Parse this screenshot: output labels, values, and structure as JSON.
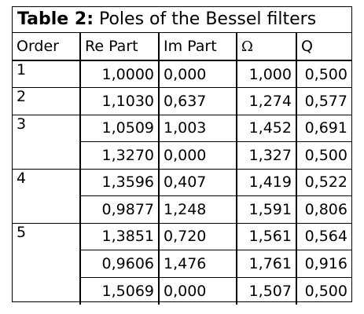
{
  "title": {
    "label": "Table 2:",
    "text": " Poles of the Bessel filters"
  },
  "columns": [
    "Order",
    "Re Part",
    "Im Part",
    "Ω",
    "Q"
  ],
  "rows": [
    {
      "order": "1",
      "re": "1,0000",
      "im": "0,000",
      "omega": "1,000",
      "q": "0,500"
    },
    {
      "order": "2",
      "re": "1,1030",
      "im": "0,637",
      "omega": "1,274",
      "q": "0,577"
    },
    {
      "order": "3",
      "re": "1,0509",
      "im": "1,003",
      "omega": "1,452",
      "q": "0,691"
    },
    {
      "order": "",
      "re": "1,3270",
      "im": "0,000",
      "omega": "1,327",
      "q": "0,500"
    },
    {
      "order": "4",
      "re": "1,3596",
      "im": "0,407",
      "omega": "1,419",
      "q": "0,522"
    },
    {
      "order": "",
      "re": "0,9877",
      "im": "1,248",
      "omega": "1,591",
      "q": "0,806"
    },
    {
      "order": "5",
      "re": "1,3851",
      "im": "0,720",
      "omega": "1,561",
      "q": "0,564"
    },
    {
      "order": "",
      "re": "0,9606",
      "im": "1,476",
      "omega": "1,761",
      "q": "0,916"
    },
    {
      "order": "",
      "re": "1,5069",
      "im": "0,000",
      "omega": "1,507",
      "q": "0,500"
    }
  ]
}
